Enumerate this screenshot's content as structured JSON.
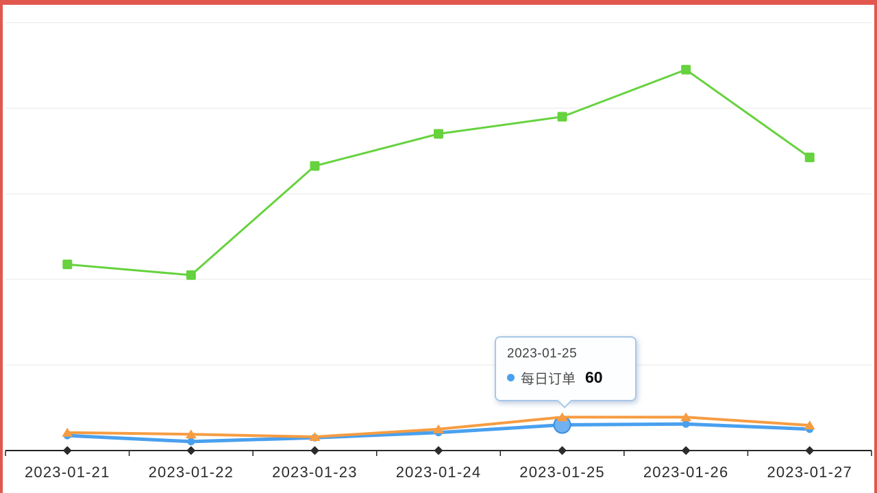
{
  "frame": {
    "border_color": "#e2574d"
  },
  "chart_data": {
    "type": "line",
    "categories": [
      "2023-01-21",
      "2023-01-22",
      "2023-01-23",
      "2023-01-24",
      "2023-01-25",
      "2023-01-26",
      "2023-01-27"
    ],
    "series": [
      {
        "id": "green-series",
        "name": "",
        "color": "#66d23e",
        "marker": "square",
        "line_width": 3,
        "values": [
          435,
          410,
          665,
          740,
          780,
          890,
          685
        ]
      },
      {
        "id": "black-series",
        "name": "",
        "color": "#2b2b2b",
        "marker": "diamond",
        "line_width": 2,
        "values": [
          0,
          0,
          0,
          0,
          0,
          0,
          0
        ]
      },
      {
        "id": "daily-orders",
        "name": "每日订单",
        "color": "#4aa0ee",
        "marker": "circle",
        "line_width": 5,
        "values": [
          35,
          21,
          30,
          42,
          60,
          62,
          50
        ]
      },
      {
        "id": "orange-series",
        "name": "",
        "color": "#f69c42",
        "marker": "triangle",
        "line_width": 4,
        "values": [
          42,
          38,
          32,
          50,
          78,
          78,
          59
        ]
      }
    ],
    "ylim": [
      0,
      1040
    ],
    "grid_values": [
      200,
      400,
      600,
      800,
      1000
    ],
    "grid": true,
    "legend_position": "none",
    "axis_color": "#1f1f1f",
    "gridline_color": "#ececec",
    "label_color": "#2b2b2b"
  },
  "tooltip": {
    "date": "2023-01-25",
    "series_label": "每日订单",
    "value": "60",
    "dot_color": "#4aa0ee",
    "anchor": {
      "series_id": "daily-orders",
      "category_index": 4
    }
  }
}
